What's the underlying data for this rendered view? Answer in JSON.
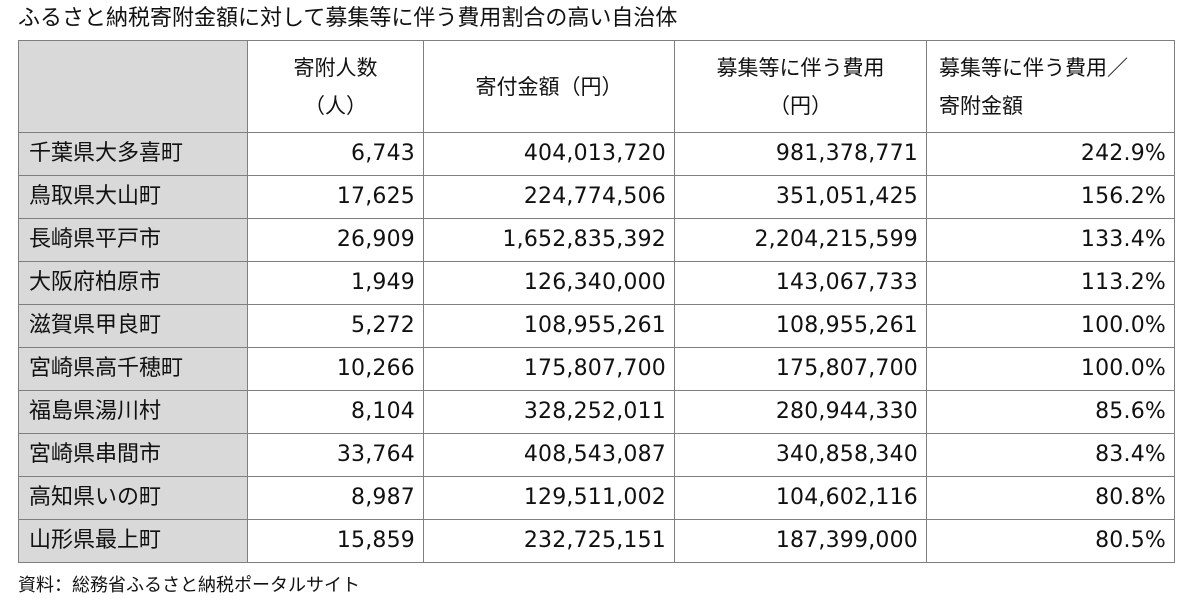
{
  "title": "ふるさと納税寄附金額に対して募集等に伴う費用割合の高い自治体",
  "table": {
    "headers": {
      "donors_l1": "寄附人数",
      "donors_l2": "（人）",
      "amount": "寄付金額（円）",
      "cost_l1": "募集等に伴う費用",
      "cost_l2": "（円）",
      "ratio_l1": "募集等に伴う費用／",
      "ratio_l2": "寄附金額"
    },
    "rows": [
      {
        "municipality": "千葉県大多喜町",
        "donors": "6,743",
        "amount": "404,013,720",
        "cost": "981,378,771",
        "ratio": "242.9%"
      },
      {
        "municipality": "鳥取県大山町",
        "donors": "17,625",
        "amount": "224,774,506",
        "cost": "351,051,425",
        "ratio": "156.2%"
      },
      {
        "municipality": "長崎県平戸市",
        "donors": "26,909",
        "amount": "1,652,835,392",
        "cost": "2,204,215,599",
        "ratio": "133.4%"
      },
      {
        "municipality": "大阪府柏原市",
        "donors": "1,949",
        "amount": "126,340,000",
        "cost": "143,067,733",
        "ratio": "113.2%"
      },
      {
        "municipality": "滋賀県甲良町",
        "donors": "5,272",
        "amount": "108,955,261",
        "cost": "108,955,261",
        "ratio": "100.0%"
      },
      {
        "municipality": "宮崎県高千穂町",
        "donors": "10,266",
        "amount": "175,807,700",
        "cost": "175,807,700",
        "ratio": "100.0%"
      },
      {
        "municipality": "福島県湯川村",
        "donors": "8,104",
        "amount": "328,252,011",
        "cost": "280,944,330",
        "ratio": "85.6%"
      },
      {
        "municipality": "宮崎県串間市",
        "donors": "33,764",
        "amount": "408,543,087",
        "cost": "340,858,340",
        "ratio": "83.4%"
      },
      {
        "municipality": "高知県いの町",
        "donors": "8,987",
        "amount": "129,511,002",
        "cost": "104,602,116",
        "ratio": "80.8%"
      },
      {
        "municipality": "山形県最上町",
        "donors": "15,859",
        "amount": "232,725,151",
        "cost": "187,399,000",
        "ratio": "80.5%"
      }
    ]
  },
  "source": "資料：総務省ふるさと納税ポータルサイト"
}
